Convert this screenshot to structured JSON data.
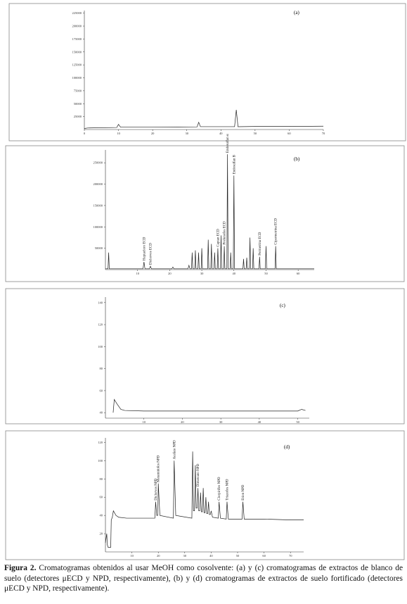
{
  "chart_data": [
    {
      "type": "line",
      "panel_label": "(a)",
      "color": "#222",
      "xlim": [
        0,
        70
      ],
      "xticks": [
        0,
        10,
        20,
        30,
        40,
        50,
        60,
        70
      ],
      "ylim": [
        0,
        230000
      ],
      "yticks": [
        25000,
        50000,
        75000,
        100000,
        125000,
        150000,
        175000,
        200000,
        225000
      ],
      "x": [
        0,
        1,
        9.5,
        10,
        10.6,
        20,
        33,
        33.5,
        34,
        35,
        44,
        44.5,
        45,
        50,
        60,
        70
      ],
      "series": [
        {
          "values": [
            2000,
            3000,
            4000,
            10000,
            4500,
            4500,
            5000,
            14000,
            5500,
            5500,
            5500,
            38000,
            5500,
            6000,
            6000,
            6500
          ]
        }
      ]
    },
    {
      "type": "line",
      "panel_label": "(b)",
      "color": "#222",
      "xlim": [
        0,
        65
      ],
      "xticks": [
        10,
        20,
        30,
        40,
        50,
        60
      ],
      "ylim": [
        0,
        280000
      ],
      "yticks": [
        50000,
        100000,
        150000,
        200000,
        250000
      ],
      "x": [
        0,
        0.8,
        1,
        1.2,
        11.7,
        12,
        12.3,
        13.7,
        14,
        14.3,
        20.7,
        21,
        21.3,
        25.7,
        26,
        26.3,
        26.8,
        27,
        27.2,
        27.8,
        28,
        28.2,
        28.8,
        29,
        29.2,
        29.8,
        30,
        30.2,
        31.8,
        32,
        32.2,
        32.8,
        33,
        33.2,
        33.8,
        34,
        34.2,
        34.8,
        35,
        35.2,
        35.8,
        36,
        36.2,
        36.8,
        37,
        37.2,
        37.8,
        38,
        38.2,
        38.8,
        39,
        39.2,
        39.8,
        40,
        40.2,
        42.8,
        43,
        43.2,
        43.8,
        44,
        44.2,
        44.8,
        45,
        45.2,
        45.8,
        46,
        46.2,
        47.8,
        48,
        48.2,
        49.8,
        50,
        50.2,
        52.8,
        53,
        53.2,
        65
      ],
      "series": [
        {
          "values": [
            2000,
            2000,
            40000,
            2000,
            2000,
            18000,
            2000,
            2000,
            8000,
            2000,
            2000,
            6000,
            2000,
            2000,
            10000,
            2000,
            2000,
            40000,
            2000,
            2000,
            45000,
            2000,
            2000,
            40000,
            2000,
            2000,
            50000,
            2000,
            2000,
            70000,
            2000,
            2000,
            60000,
            2000,
            2000,
            40000,
            2000,
            2000,
            50000,
            2000,
            2000,
            80000,
            2000,
            2000,
            55000,
            2000,
            2000,
            270000,
            2000,
            2000,
            40000,
            2000,
            2000,
            220000,
            2000,
            2000,
            25000,
            2000,
            2000,
            28000,
            2000,
            2000,
            75000,
            2000,
            2000,
            50000,
            2000,
            2000,
            30000,
            2000,
            2000,
            55000,
            2000,
            2000,
            55000,
            2000,
            2000
          ]
        }
      ],
      "annotations": [
        {
          "x": 12,
          "y": 18000,
          "text": "Heptacloro ECD"
        },
        {
          "x": 14,
          "y": 8000,
          "text": "Diclorvos ECD"
        },
        {
          "x": 35,
          "y": 50000,
          "text": "Captan ECD"
        },
        {
          "x": 37,
          "y": 55000,
          "text": "Profenofos ECD"
        },
        {
          "x": 38,
          "y": 270000,
          "text": "Endosulfan α"
        },
        {
          "x": 40,
          "y": 220000,
          "text": "Endosulfan B"
        },
        {
          "x": 48,
          "y": 30000,
          "text": "Permetrina ECD"
        },
        {
          "x": 53,
          "y": 55000,
          "text": "Cipermetrina ECD"
        }
      ]
    },
    {
      "type": "line",
      "panel_label": "(c)",
      "color": "#222",
      "xlim": [
        0,
        53
      ],
      "xticks": [
        10,
        20,
        30,
        40,
        50
      ],
      "ylim": [
        35,
        145
      ],
      "yticks": [
        40,
        60,
        80,
        100,
        120,
        140
      ],
      "x": [
        2,
        2.3,
        3,
        4,
        5,
        10,
        20,
        30,
        40,
        50,
        51,
        52
      ],
      "series": [
        {
          "values": [
            40,
            52,
            48,
            43,
            42,
            41.5,
            41.5,
            41.5,
            41.5,
            41.5,
            43,
            42
          ]
        }
      ]
    },
    {
      "type": "line",
      "panel_label": "(d)",
      "color": "#222",
      "xlim": [
        0,
        75
      ],
      "xticks": [
        10,
        20,
        30,
        40,
        50,
        60,
        70
      ],
      "ylim": [
        0,
        125
      ],
      "yticks": [
        20,
        40,
        60,
        80,
        100,
        120
      ],
      "x": [
        0,
        0.5,
        0.7,
        1,
        1.3,
        2,
        2.2,
        2.6,
        3,
        4,
        5,
        8,
        18.7,
        19,
        19.4,
        19.8,
        20,
        20.6,
        25.7,
        26,
        26.6,
        32.7,
        33,
        33.3,
        33.7,
        34,
        34.3,
        34.7,
        35,
        35.3,
        35.7,
        36,
        36.3,
        36.7,
        37,
        37.3,
        37.7,
        38,
        38.3,
        38.7,
        39,
        39.3,
        39.7,
        40,
        40.5,
        42.7,
        43,
        43.5,
        45.7,
        46,
        46.5,
        51.7,
        52,
        52.5,
        60,
        70,
        75
      ],
      "series": [
        {
          "values": [
            10,
            20,
            8,
            5,
            5,
            5,
            35,
            38,
            45,
            40,
            38,
            37,
            37,
            55,
            40,
            40,
            75,
            40,
            37,
            100,
            40,
            37,
            110,
            45,
            45,
            95,
            48,
            48,
            70,
            45,
            45,
            65,
            44,
            44,
            70,
            43,
            43,
            60,
            42,
            42,
            55,
            41,
            41,
            45,
            38,
            37,
            55,
            37,
            36,
            55,
            36,
            36,
            55,
            36,
            36,
            35,
            35
          ]
        }
      ],
      "annotations": [
        {
          "x": 19,
          "y": 55,
          "text": "Diclorvos NPD"
        },
        {
          "x": 20,
          "y": 75,
          "text": "Metamidofos NPD"
        },
        {
          "x": 26,
          "y": 100,
          "text": "Acefato NPD"
        },
        {
          "x": 35,
          "y": 70,
          "text": "Dimetoato NPD"
        },
        {
          "x": 43,
          "y": 55,
          "text": "Clorpirifos NPD"
        },
        {
          "x": 46,
          "y": 55,
          "text": "Triazofos NPD"
        },
        {
          "x": 52,
          "y": 55,
          "text": "Etion NPD"
        }
      ]
    }
  ],
  "caption": {
    "label": "Figura 2.",
    "text": "Cromatogramas obtenidos al usar MeOH como cosolvente: (a) y (c) cromatogramas de extractos de blanco de suelo (detectores μECD y NPD, respectivamente), (b) y (d) cromatogramas de extractos de suelo fortificado (detectores μECD y NPD, respectivamente)."
  }
}
